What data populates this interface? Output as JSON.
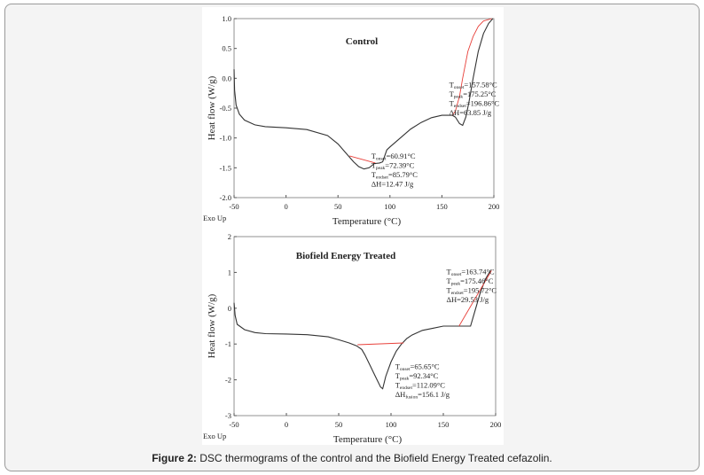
{
  "caption": {
    "label": "Figure 2:",
    "text": " DSC thermograms of the control and the Biofield Energy Treated cefazolin."
  },
  "chart_data": [
    {
      "type": "line",
      "title": "Control",
      "xlabel": "Temperature (°C)",
      "ylabel": "Heat flow (W/g)",
      "corner_label": "Exo Up",
      "xlim": [
        -50,
        200
      ],
      "ylim": [
        -2.0,
        1.0
      ],
      "xticks": [
        -50,
        0,
        50,
        100,
        150,
        200
      ],
      "yticks": [
        -2.0,
        -1.5,
        -1.0,
        -0.5,
        0.0,
        0.5,
        1.0
      ],
      "ytick_labels": [
        "-2.0",
        "-1.5",
        "-1.0",
        "-0.5",
        "0.0",
        "0.5",
        "1.0"
      ],
      "series": [
        {
          "color": "#333333",
          "points": [
            [
              -50,
              0.15
            ],
            [
              -49.5,
              -0.2
            ],
            [
              -48,
              -0.45
            ],
            [
              -45,
              -0.6
            ],
            [
              -40,
              -0.7
            ],
            [
              -30,
              -0.78
            ],
            [
              -20,
              -0.81
            ],
            [
              0,
              -0.83
            ],
            [
              20,
              -0.86
            ],
            [
              40,
              -0.96
            ],
            [
              50,
              -1.1
            ],
            [
              60,
              -1.3
            ],
            [
              65,
              -1.4
            ],
            [
              70,
              -1.48
            ],
            [
              75,
              -1.52
            ],
            [
              80,
              -1.5
            ],
            [
              85,
              -1.43
            ],
            [
              90,
              -1.42
            ],
            [
              93,
              -1.4
            ],
            [
              97,
              -1.2
            ],
            [
              100,
              -1.15
            ],
            [
              110,
              -1.0
            ],
            [
              120,
              -0.85
            ],
            [
              130,
              -0.74
            ],
            [
              140,
              -0.66
            ],
            [
              150,
              -0.62
            ],
            [
              160,
              -0.62
            ],
            [
              163,
              -0.65
            ],
            [
              167,
              -0.76
            ],
            [
              170,
              -0.79
            ],
            [
              173,
              -0.65
            ],
            [
              176,
              -0.4
            ],
            [
              180,
              0.0
            ],
            [
              185,
              0.45
            ],
            [
              190,
              0.75
            ],
            [
              195,
              0.92
            ],
            [
              199,
              1.0
            ]
          ]
        },
        {
          "color": "#e8403a",
          "points": [
            [
              61,
              -1.3
            ],
            [
              86,
              -1.42
            ]
          ]
        },
        {
          "color": "#e8403a",
          "points": [
            [
              160,
              -0.62
            ],
            [
              163,
              -0.55
            ],
            [
              167,
              -0.3
            ],
            [
              170,
              0.0
            ],
            [
              175,
              0.45
            ],
            [
              180,
              0.7
            ],
            [
              185,
              0.87
            ],
            [
              190,
              0.96
            ],
            [
              198,
              1.0
            ]
          ]
        }
      ],
      "annotations": [
        {
          "at": [
            157,
            -0.15
          ],
          "lines": [
            {
              "sym": "T",
              "sub": "onset",
              "val": "=157.58°C"
            },
            {
              "sym": "T",
              "sub": "peak",
              "val": "=175.25°C"
            },
            {
              "sym": "T",
              "sub": "endset",
              "val": "=196.86°C"
            },
            {
              "sym": "ΔH",
              "sub": "",
              "val": "=63.85 J/g"
            }
          ]
        },
        {
          "at": [
            82,
            -1.35
          ],
          "lines": [
            {
              "sym": "T",
              "sub": "onset",
              "val": "=60.91°C"
            },
            {
              "sym": "T",
              "sub": "peak",
              "val": "=72.39°C"
            },
            {
              "sym": "T",
              "sub": "endset",
              "val": "=85.79°C"
            },
            {
              "sym": "ΔH",
              "sub": "",
              "val": "=12.47 J/g"
            }
          ]
        }
      ]
    },
    {
      "type": "line",
      "title": "Biofield Energy Treated",
      "xlabel": "Temperature (°C)",
      "ylabel": "Heat flow (W/g)",
      "corner_label": "Exo Up",
      "xlim": [
        -50,
        200
      ],
      "ylim": [
        -3,
        2
      ],
      "xticks": [
        -50,
        0,
        50,
        100,
        150,
        200
      ],
      "yticks": [
        -3,
        -2,
        -1,
        0,
        1,
        2
      ],
      "ytick_labels": [
        "-3",
        "-2",
        "-1",
        "0",
        "1",
        "2"
      ],
      "series": [
        {
          "color": "#333333",
          "points": [
            [
              -50,
              0.15
            ],
            [
              -49,
              -0.2
            ],
            [
              -47,
              -0.45
            ],
            [
              -40,
              -0.6
            ],
            [
              -30,
              -0.68
            ],
            [
              -20,
              -0.71
            ],
            [
              0,
              -0.72
            ],
            [
              20,
              -0.74
            ],
            [
              40,
              -0.8
            ],
            [
              50,
              -0.88
            ],
            [
              60,
              -0.97
            ],
            [
              67,
              -1.05
            ],
            [
              72,
              -1.15
            ],
            [
              75,
              -1.3
            ],
            [
              80,
              -1.6
            ],
            [
              85,
              -1.9
            ],
            [
              90,
              -2.2
            ],
            [
              92,
              -2.25
            ],
            [
              95,
              -1.9
            ],
            [
              100,
              -1.5
            ],
            [
              105,
              -1.2
            ],
            [
              110,
              -1.0
            ],
            [
              115,
              -0.85
            ],
            [
              120,
              -0.75
            ],
            [
              130,
              -0.62
            ],
            [
              140,
              -0.56
            ],
            [
              150,
              -0.5
            ],
            [
              165,
              -0.5
            ],
            [
              176,
              -0.5
            ],
            [
              180,
              -0.1
            ],
            [
              185,
              0.4
            ],
            [
              190,
              0.8
            ],
            [
              195,
              1.05
            ]
          ]
        },
        {
          "color": "#e8403a",
          "points": [
            [
              68,
              -1.02
            ],
            [
              112,
              -0.97
            ]
          ]
        },
        {
          "color": "#e8403a",
          "points": [
            [
              165,
              -0.5
            ],
            [
              196,
              1.05
            ]
          ]
        }
      ],
      "annotations": [
        {
          "at": [
            153,
            0.95
          ],
          "lines": [
            {
              "sym": "T",
              "sub": "onset",
              "val": "=163.74°C"
            },
            {
              "sym": "T",
              "sub": "peak",
              "val": "=175.46°C"
            },
            {
              "sym": "T",
              "sub": "endset",
              "val": "=195.72°C"
            },
            {
              "sym": "ΔH",
              "sub": "",
              "val": "=29.53 J/g"
            }
          ]
        },
        {
          "at": [
            104,
            -1.7
          ],
          "lines": [
            {
              "sym": "T",
              "sub": "onset",
              "val": "=65.65°C"
            },
            {
              "sym": "T",
              "sub": "peak",
              "val": "=92.34°C"
            },
            {
              "sym": "T",
              "sub": "endset",
              "val": "=112.09°C"
            },
            {
              "sym": "ΔH",
              "sub": "fusion",
              "val": "=156.1 J/g"
            }
          ]
        }
      ]
    }
  ]
}
